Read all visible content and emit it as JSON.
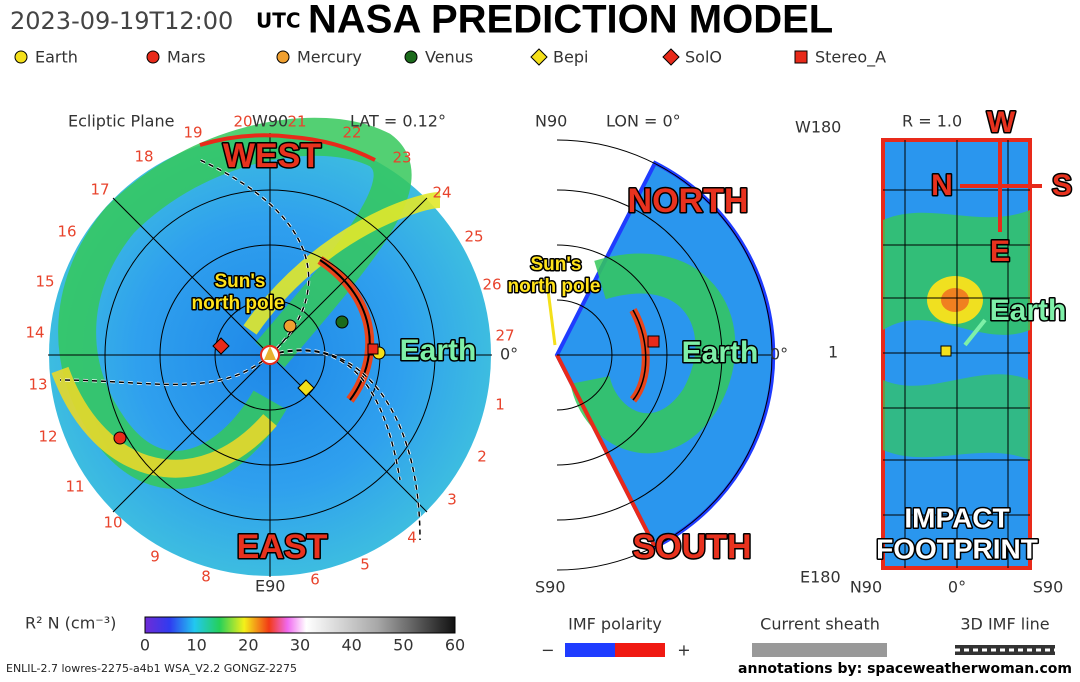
{
  "header": {
    "timestamp": "2023-09-19T12:00",
    "timezone": "UTC",
    "title": "NASA PREDICTION MODEL"
  },
  "legend": [
    "Earth",
    "Mars",
    "Mercury",
    "Venus",
    "Bepi",
    "SolO",
    "Stereo_A"
  ],
  "ecliptic": {
    "title": "Ecliptic Plane",
    "top": "W90",
    "lat": "LAT = 0.12°",
    "bottom": "E90",
    "right": "0°",
    "ring_labels": [
      "19",
      "20",
      "21",
      "22",
      "23",
      "24",
      "25",
      "26",
      "27",
      "1",
      "2",
      "3",
      "4",
      "5",
      "6",
      "8",
      "9",
      "10",
      "11",
      "12",
      "13",
      "14",
      "15",
      "16",
      "17",
      "18"
    ],
    "west": "WEST",
    "east": "EAST",
    "sun_pole": [
      "Sun's",
      "north pole"
    ],
    "earth": "Earth"
  },
  "meridional": {
    "top": "N90",
    "lon": "LON = 0°",
    "bottom": "S90",
    "right": "0°",
    "north": "NORTH",
    "south": "SOUTH",
    "sun_pole": [
      "Sun's",
      "north pole"
    ],
    "earth": "Earth"
  },
  "footprint": {
    "top_left": "W180",
    "r": "R = 1.0",
    "mid_left": "1",
    "bottom_left": "E180",
    "x_labels": [
      "N90",
      "0°",
      "S90"
    ],
    "compass": {
      "w": "W",
      "n": "N",
      "e": "E",
      "s": "S"
    },
    "earth": "Earth",
    "impact": [
      "IMPACT",
      "FOOTPRINT"
    ]
  },
  "colorbar": {
    "label": "R² N (cm⁻³)",
    "ticks": [
      0,
      10,
      20,
      30,
      40,
      50,
      60
    ]
  },
  "imf": {
    "label": "IMF polarity",
    "minus": "−",
    "plus": "+"
  },
  "current_sheath": "Current sheath",
  "imf_line": "3D IMF line",
  "footer": {
    "model": "ENLIL-2.7 lowres-2275-a4b1 WSA_V2.2 GONGZ-2275",
    "credit": "annotations by: spaceweatherwoman.com"
  }
}
